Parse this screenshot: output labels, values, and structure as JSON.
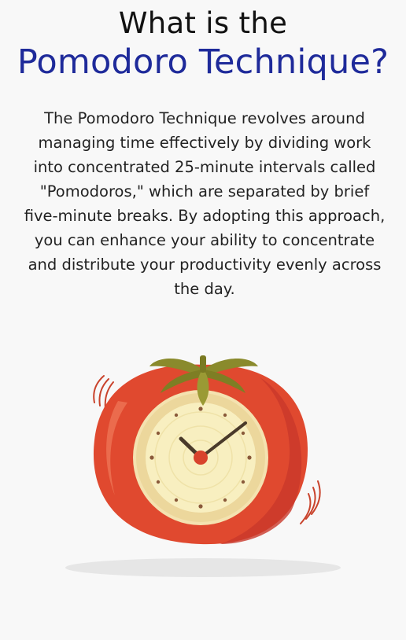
{
  "title": {
    "line1": "What is the",
    "line2": "Pomodoro Technique?"
  },
  "description": "The Pomodoro Technique revolves around managing time effectively by dividing work into concentrated 25-minute intervals called \"Pomodoros,\" which are separated by brief five-minute breaks. By adopting this approach, you can enhance your ability to concentrate and distribute your productivity evenly across the day.",
  "colors": {
    "background": "#f8f8f8",
    "title_dark": "#111111",
    "title_accent": "#1e2a9a",
    "tomato_red": "#e0492f",
    "leaf_green": "#8a8a2c",
    "clock_face": "#f7ecb8",
    "clock_hand": "#4a3a2a"
  },
  "illustration": {
    "icon": "tomato-clock-icon",
    "clock_hour_hand": 10,
    "clock_minute_hand": 8
  }
}
